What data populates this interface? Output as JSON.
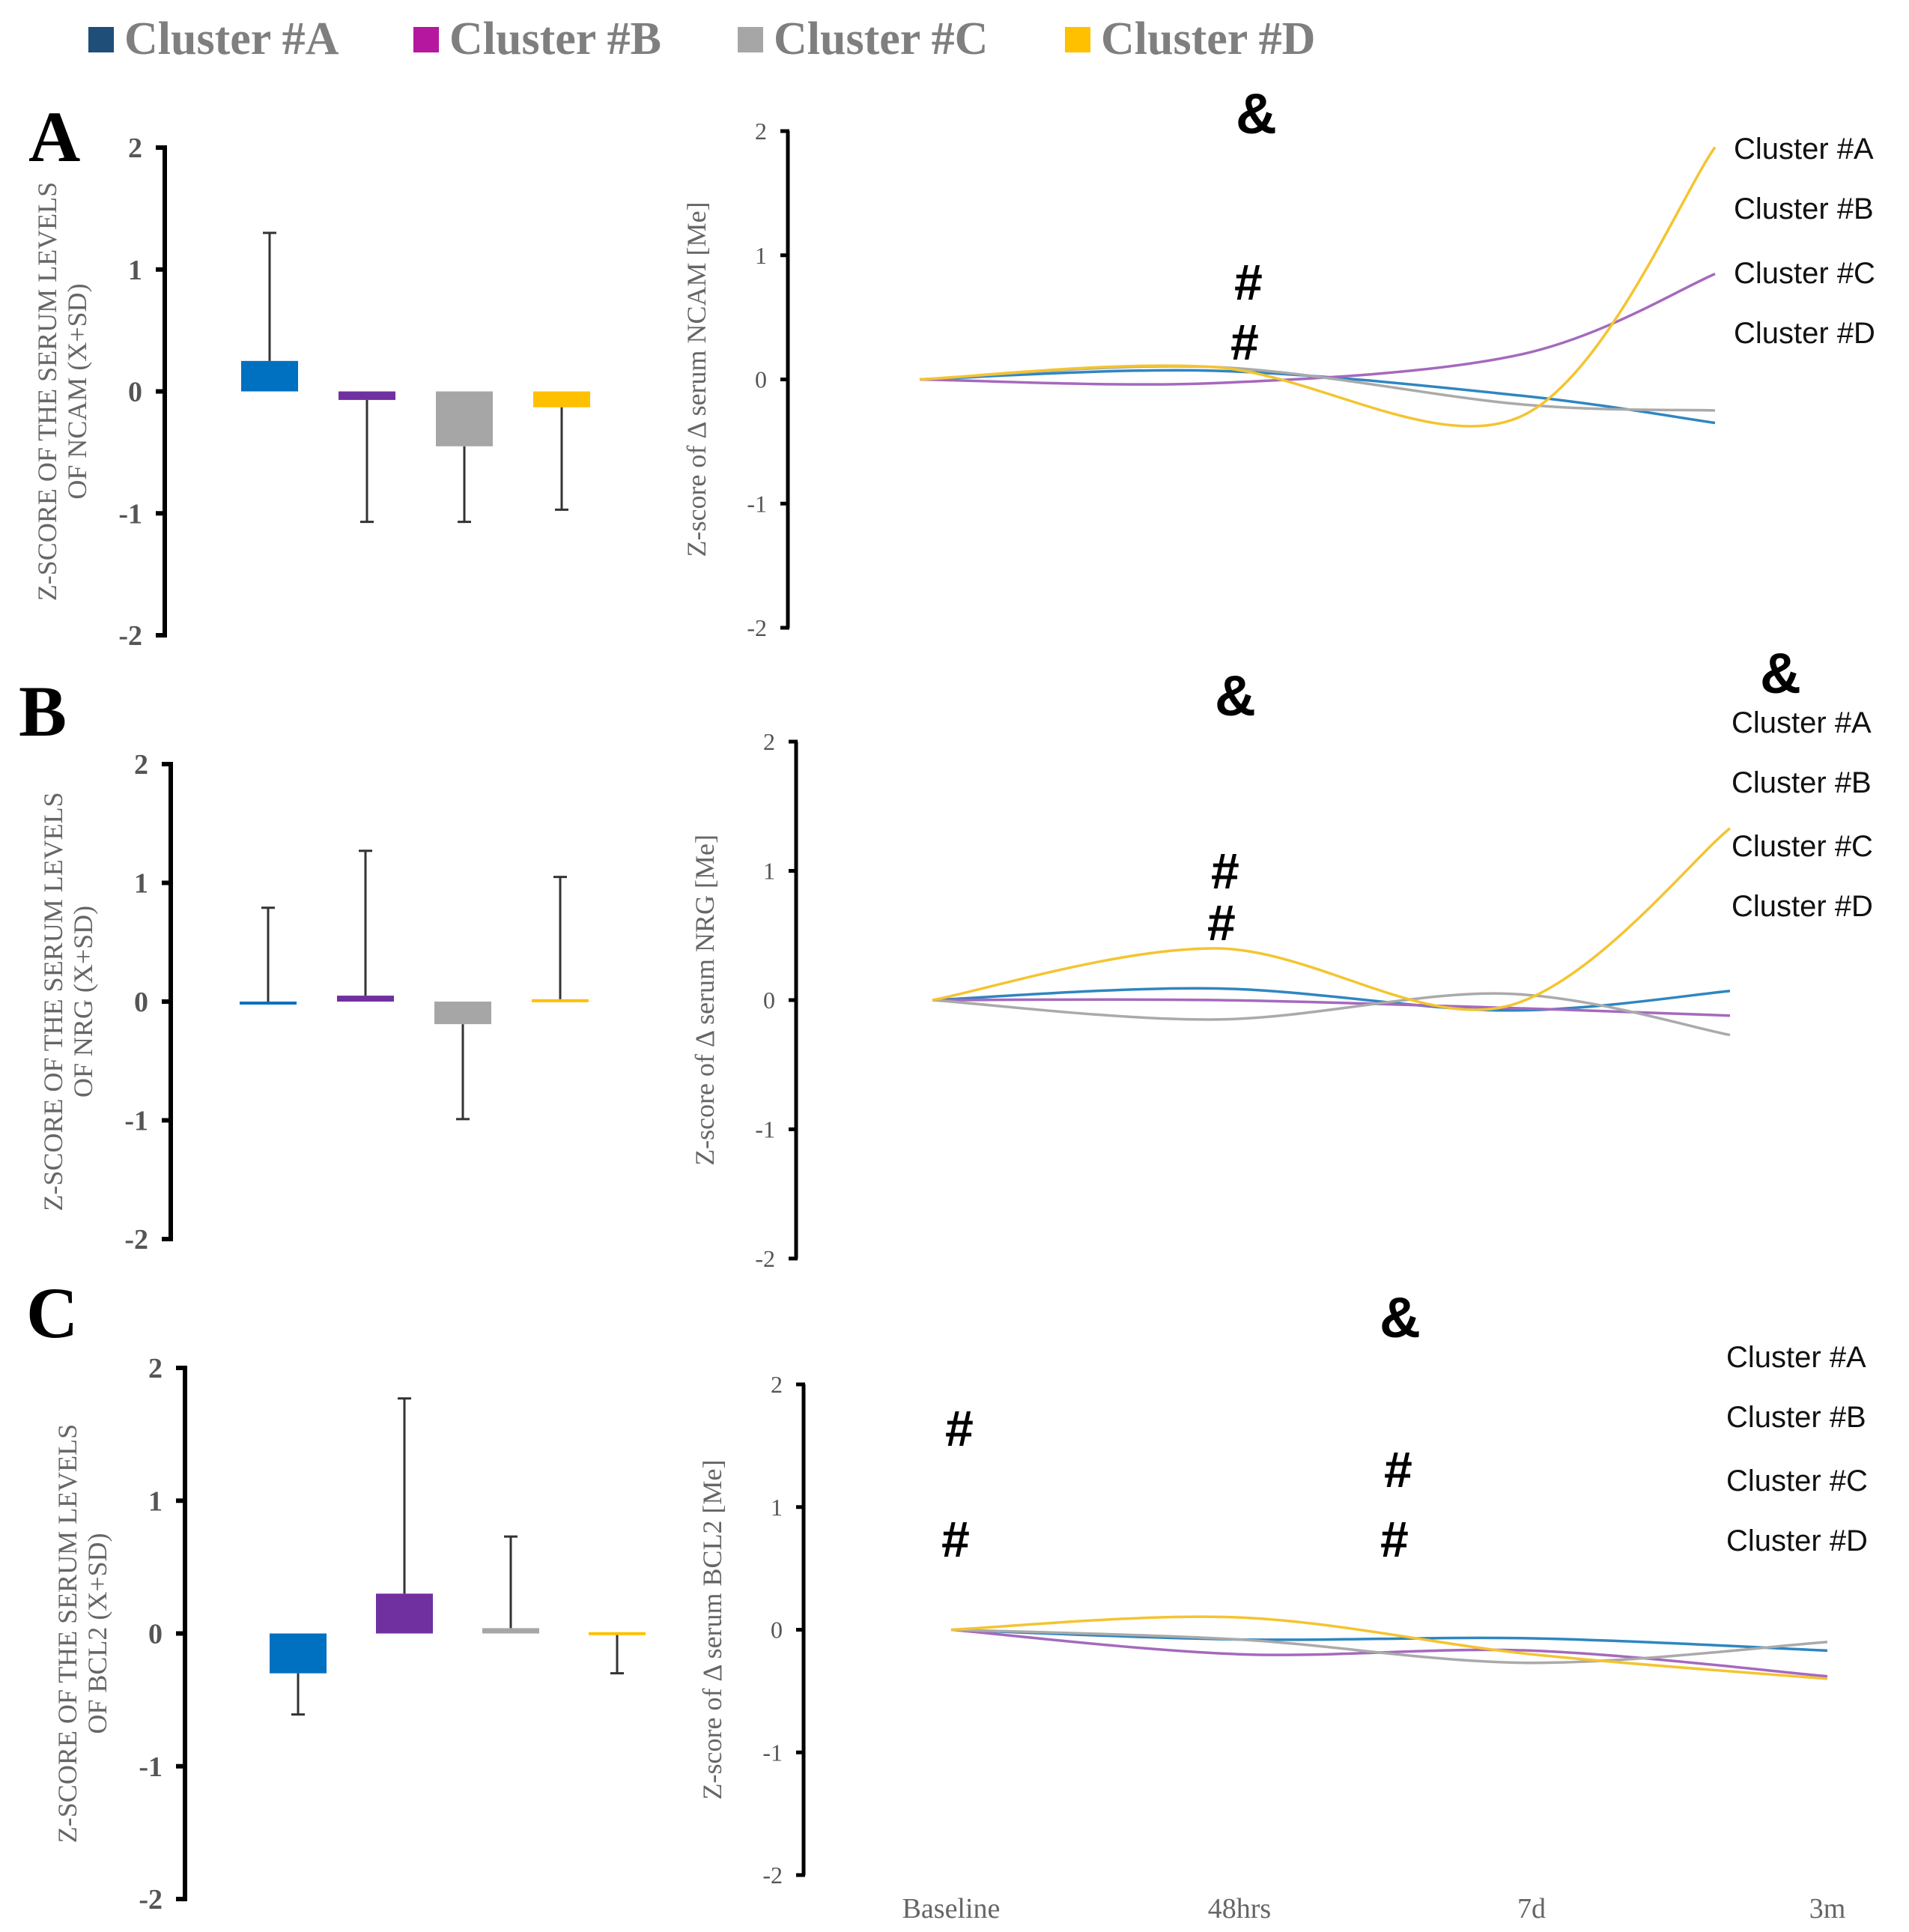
{
  "legend": {
    "items": [
      {
        "label": "Cluster #A",
        "color": "#1f4e79"
      },
      {
        "label": "Cluster #B",
        "color": "#b5179e"
      },
      {
        "label": "Cluster #C",
        "color": "#a6a6a6"
      },
      {
        "label": "Cluster #D",
        "color": "#ffc000"
      }
    ]
  },
  "colors": {
    "barA": "#0070c0",
    "barB": "#7030a0",
    "barC": "#a6a6a6",
    "barD": "#ffc000",
    "lineA": "#2e86c1",
    "lineB": "#a569bd",
    "lineC": "#aaaaaa",
    "lineD": "#f4c430"
  },
  "time_labels": [
    "Baseline",
    "48hrs",
    "7d",
    "3m"
  ],
  "chart_data": [
    {
      "type": "bar",
      "panel": "A",
      "ylabel": "Z-SCORE OF THE SERUM LEVELS OF NCAM (X+SD)",
      "ylim": [
        -2,
        2
      ],
      "yticks": [
        "-2",
        "-1",
        "0",
        "1",
        "2"
      ],
      "categories": [
        "Cluster #A",
        "Cluster #B",
        "Cluster #C",
        "Cluster #D"
      ],
      "values": [
        0.25,
        -0.07,
        -0.45,
        -0.13
      ],
      "error_ends": [
        1.3,
        -1.07,
        -1.07,
        -0.97
      ]
    },
    {
      "type": "line",
      "panel": "A",
      "ylabel": "Z-score of Δ serum NCAM [Me]",
      "ylim": [
        -2,
        2
      ],
      "yticks": [
        "-2",
        "-1",
        "0",
        "1",
        "2"
      ],
      "x": [
        "Baseline",
        "48hrs",
        "7d",
        "3m"
      ],
      "series": [
        {
          "name": "Cluster #A",
          "values": [
            0,
            0.07,
            -0.13,
            -0.35
          ]
        },
        {
          "name": "Cluster #B",
          "values": [
            0,
            -0.03,
            0.2,
            0.85
          ]
        },
        {
          "name": "Cluster #C",
          "values": [
            0,
            0.1,
            -0.2,
            -0.25
          ]
        },
        {
          "name": "Cluster #D",
          "values": [
            0,
            0.1,
            -0.3,
            1.87
          ]
        }
      ],
      "annotations": [
        "&",
        "#",
        "#"
      ],
      "legend_labels": [
        "Cluster #A",
        "Cluster #B",
        "Cluster #C",
        "Cluster #D"
      ]
    },
    {
      "type": "bar",
      "panel": "B",
      "ylabel": "Z-SCORE OF THE SERUM LEVELS OF NRG (X+SD)",
      "ylim": [
        -2,
        2
      ],
      "yticks": [
        "-2",
        "-1",
        "0",
        "1",
        "2"
      ],
      "categories": [
        "Cluster #A",
        "Cluster #B",
        "Cluster #C",
        "Cluster #D"
      ],
      "values": [
        0.0,
        0.05,
        -0.19,
        0.02
      ],
      "error_ends": [
        0.79,
        1.27,
        -0.99,
        1.05
      ]
    },
    {
      "type": "line",
      "panel": "B",
      "ylabel": "Z-score of Δ serum NRG [Me]",
      "ylim": [
        -2,
        2
      ],
      "yticks": [
        "-2",
        "-1",
        "0",
        "1",
        "2"
      ],
      "x": [
        "Baseline",
        "48hrs",
        "7d",
        "3m"
      ],
      "series": [
        {
          "name": "Cluster #A",
          "values": [
            0,
            0.09,
            -0.08,
            0.07
          ]
        },
        {
          "name": "Cluster #B",
          "values": [
            0,
            0.0,
            -0.06,
            -0.12
          ]
        },
        {
          "name": "Cluster #C",
          "values": [
            0,
            -0.15,
            0.05,
            -0.27
          ]
        },
        {
          "name": "Cluster #D",
          "values": [
            0,
            0.4,
            -0.05,
            1.33
          ]
        }
      ],
      "annotations": [
        "&",
        "&",
        "#",
        "#"
      ],
      "legend_labels": [
        "Cluster #A",
        "Cluster #B",
        "Cluster #C",
        "Cluster #D"
      ]
    },
    {
      "type": "bar",
      "panel": "C",
      "ylabel": "Z-SCORE OF THE SERUM LEVELS OF BCL2 (X+SD)",
      "ylim": [
        -2,
        2
      ],
      "yticks": [
        "-2",
        "-1",
        "0",
        "1",
        "2"
      ],
      "categories": [
        "Cluster #A",
        "Cluster #B",
        "Cluster #C",
        "Cluster #D"
      ],
      "values": [
        -0.3,
        0.3,
        0.04,
        0.01
      ],
      "error_ends": [
        -0.61,
        1.77,
        0.73,
        -0.3
      ]
    },
    {
      "type": "line",
      "panel": "C",
      "ylabel": "Z-score of Δ serum BCL2 [Me]",
      "ylim": [
        -2,
        2
      ],
      "yticks": [
        "-2",
        "-1",
        "0",
        "1",
        "2"
      ],
      "x": [
        "Baseline",
        "48hrs",
        "7d",
        "3m"
      ],
      "series": [
        {
          "name": "Cluster #A",
          "values": [
            0,
            -0.08,
            -0.07,
            -0.17
          ]
        },
        {
          "name": "Cluster #B",
          "values": [
            0,
            -0.2,
            -0.17,
            -0.38
          ]
        },
        {
          "name": "Cluster #C",
          "values": [
            0,
            -0.08,
            -0.27,
            -0.1
          ]
        },
        {
          "name": "Cluster #D",
          "values": [
            0,
            0.1,
            -0.2,
            -0.4
          ]
        }
      ],
      "annotations": [
        "&",
        "#",
        "#",
        "#",
        "#"
      ],
      "legend_labels": [
        "Cluster #A",
        "Cluster #B",
        "Cluster #C",
        "Cluster #D"
      ]
    }
  ],
  "panel_letters": [
    "A",
    "B",
    "C"
  ]
}
